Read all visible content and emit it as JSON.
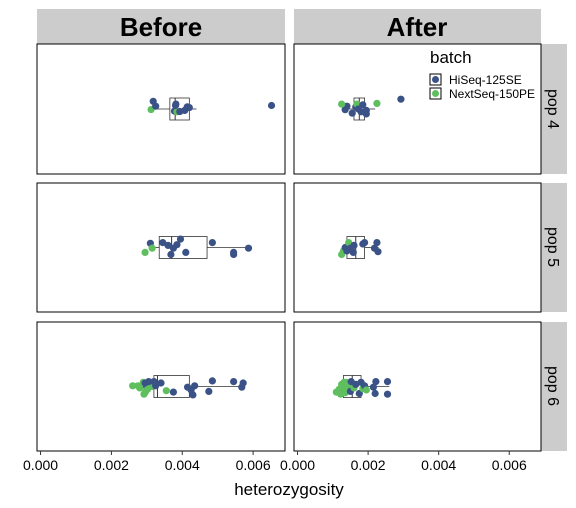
{
  "chart_data": {
    "type": "scatter",
    "subtype": "faceted jittered points with boxplots",
    "xlabel": "heterozygosity",
    "xlim": [
      -0.0001,
      0.0069
    ],
    "x_ticks": [
      "0.000",
      "0.002",
      "0.004",
      "0.006"
    ],
    "x_tick_values": [
      0.0,
      0.002,
      0.004,
      0.006
    ],
    "facet_columns": [
      "Before",
      "After"
    ],
    "facet_rows": [
      "pop 4",
      "pop 5",
      "pop 6"
    ],
    "legend": {
      "title": "batch",
      "position": "top-right",
      "entries": [
        {
          "label": "HiSeq-125SE",
          "color": "#3b5287"
        },
        {
          "label": "NextSeq-150PE",
          "color": "#5fbf5f"
        }
      ]
    },
    "panels": [
      {
        "column": "Before",
        "row": "pop 4",
        "box": {
          "min": 0.0032,
          "q1": 0.00365,
          "median": 0.0038,
          "q3": 0.0042,
          "max": 0.0044
        },
        "points": [
          {
            "x": 0.00312,
            "y": 0.04,
            "batch": "NextSeq-150PE"
          },
          {
            "x": 0.00325,
            "y": -0.2,
            "batch": "HiSeq-125SE"
          },
          {
            "x": 0.00318,
            "y": -0.55,
            "batch": "HiSeq-125SE"
          },
          {
            "x": 0.00378,
            "y": 0.15,
            "batch": "HiSeq-125SE"
          },
          {
            "x": 0.00385,
            "y": 0.2,
            "batch": "NextSeq-150PE"
          },
          {
            "x": 0.00393,
            "y": 0.18,
            "batch": "HiSeq-125SE"
          },
          {
            "x": 0.00407,
            "y": 0.1,
            "batch": "HiSeq-125SE"
          },
          {
            "x": 0.00414,
            "y": -0.15,
            "batch": "HiSeq-125SE"
          },
          {
            "x": 0.00381,
            "y": -0.25,
            "batch": "HiSeq-125SE"
          },
          {
            "x": 0.00382,
            "y": -0.35,
            "batch": "HiSeq-125SE"
          },
          {
            "x": 0.0042,
            "y": -0.1,
            "batch": "HiSeq-125SE"
          },
          {
            "x": 0.00652,
            "y": -0.25,
            "batch": "HiSeq-125SE"
          }
        ]
      },
      {
        "column": "After",
        "row": "pop 4",
        "box": {
          "min": 0.0013,
          "q1": 0.0016,
          "median": 0.00175,
          "q3": 0.0019,
          "max": 0.0022
        },
        "points": [
          {
            "x": 0.00135,
            "y": 0.05,
            "batch": "HiSeq-125SE"
          },
          {
            "x": 0.00155,
            "y": 0.3,
            "batch": "HiSeq-125SE"
          },
          {
            "x": 0.00165,
            "y": -0.15,
            "batch": "HiSeq-125SE"
          },
          {
            "x": 0.00168,
            "y": -0.35,
            "batch": "NextSeq-150PE"
          },
          {
            "x": 0.00172,
            "y": 0.0,
            "batch": "HiSeq-125SE"
          },
          {
            "x": 0.0018,
            "y": 0.2,
            "batch": "HiSeq-125SE"
          },
          {
            "x": 0.00185,
            "y": -0.3,
            "batch": "HiSeq-125SE"
          },
          {
            "x": 0.00195,
            "y": 0.1,
            "batch": "HiSeq-125SE"
          },
          {
            "x": 0.0014,
            "y": -0.2,
            "batch": "HiSeq-125SE"
          },
          {
            "x": 0.00125,
            "y": -0.35,
            "batch": "NextSeq-150PE"
          },
          {
            "x": 0.00225,
            "y": -0.4,
            "batch": "NextSeq-150PE"
          },
          {
            "x": 0.00195,
            "y": 0.35,
            "batch": "HiSeq-125SE"
          },
          {
            "x": 0.00293,
            "y": -0.7,
            "batch": "HiSeq-125SE"
          }
        ]
      },
      {
        "column": "Before",
        "row": "pop 5",
        "box": {
          "min": 0.0031,
          "q1": 0.00335,
          "median": 0.0037,
          "q3": 0.0047,
          "max": 0.0059
        },
        "points": [
          {
            "x": 0.00295,
            "y": 0.35,
            "batch": "NextSeq-150PE"
          },
          {
            "x": 0.0031,
            "y": -0.3,
            "batch": "HiSeq-125SE"
          },
          {
            "x": 0.00315,
            "y": 0.05,
            "batch": "NextSeq-150PE"
          },
          {
            "x": 0.00345,
            "y": -0.35,
            "batch": "HiSeq-125SE"
          },
          {
            "x": 0.0036,
            "y": -0.15,
            "batch": "HiSeq-125SE"
          },
          {
            "x": 0.00368,
            "y": 0.5,
            "batch": "HiSeq-125SE"
          },
          {
            "x": 0.00375,
            "y": 0.05,
            "batch": "HiSeq-125SE"
          },
          {
            "x": 0.00385,
            "y": -0.2,
            "batch": "HiSeq-125SE"
          },
          {
            "x": 0.00395,
            "y": -0.6,
            "batch": "HiSeq-125SE"
          },
          {
            "x": 0.0041,
            "y": 0.35,
            "batch": "HiSeq-125SE"
          },
          {
            "x": 0.00485,
            "y": -0.35,
            "batch": "HiSeq-125SE"
          },
          {
            "x": 0.00545,
            "y": 0.5,
            "batch": "HiSeq-125SE"
          },
          {
            "x": 0.00545,
            "y": 0.35,
            "batch": "HiSeq-125SE"
          },
          {
            "x": 0.00587,
            "y": 0.05,
            "batch": "HiSeq-125SE"
          }
        ]
      },
      {
        "column": "After",
        "row": "pop 5",
        "box": {
          "min": 0.0013,
          "q1": 0.0014,
          "median": 0.00165,
          "q3": 0.0019,
          "max": 0.0023
        },
        "points": [
          {
            "x": 0.00125,
            "y": 0.5,
            "batch": "NextSeq-150PE"
          },
          {
            "x": 0.0013,
            "y": 0.25,
            "batch": "NextSeq-150PE"
          },
          {
            "x": 0.00135,
            "y": 0.0,
            "batch": "HiSeq-125SE"
          },
          {
            "x": 0.0014,
            "y": 0.25,
            "batch": "HiSeq-125SE"
          },
          {
            "x": 0.00145,
            "y": -0.35,
            "batch": "NextSeq-150PE"
          },
          {
            "x": 0.0015,
            "y": 0.05,
            "batch": "HiSeq-125SE"
          },
          {
            "x": 0.00158,
            "y": 0.35,
            "batch": "HiSeq-125SE"
          },
          {
            "x": 0.0016,
            "y": -0.15,
            "batch": "HiSeq-125SE"
          },
          {
            "x": 0.00185,
            "y": -0.25,
            "batch": "HiSeq-125SE"
          },
          {
            "x": 0.0019,
            "y": -0.35,
            "batch": "HiSeq-125SE"
          },
          {
            "x": 0.00218,
            "y": 0.05,
            "batch": "HiSeq-125SE"
          },
          {
            "x": 0.00225,
            "y": -0.35,
            "batch": "HiSeq-125SE"
          },
          {
            "x": 0.00228,
            "y": 0.3,
            "batch": "HiSeq-125SE"
          }
        ]
      },
      {
        "column": "Before",
        "row": "pop 6",
        "box": {
          "min": 0.0028,
          "q1": 0.0032,
          "median": 0.0033,
          "q3": 0.0042,
          "max": 0.0057
        },
        "points": [
          {
            "x": 0.0026,
            "y": -0.05,
            "batch": "NextSeq-150PE"
          },
          {
            "x": 0.00275,
            "y": -0.05,
            "batch": "NextSeq-150PE"
          },
          {
            "x": 0.0028,
            "y": 0.1,
            "batch": "NextSeq-150PE"
          },
          {
            "x": 0.0029,
            "y": -0.3,
            "batch": "NextSeq-150PE"
          },
          {
            "x": 0.003,
            "y": 0.05,
            "batch": "HiSeq-125SE"
          },
          {
            "x": 0.00292,
            "y": 0.55,
            "batch": "NextSeq-150PE"
          },
          {
            "x": 0.00296,
            "y": 0.4,
            "batch": "NextSeq-150PE"
          },
          {
            "x": 0.00302,
            "y": 0.2,
            "batch": "NextSeq-150PE"
          },
          {
            "x": 0.0031,
            "y": -0.1,
            "batch": "NextSeq-150PE"
          },
          {
            "x": 0.00315,
            "y": 0.0,
            "batch": "NextSeq-150PE"
          },
          {
            "x": 0.0032,
            "y": -0.35,
            "batch": "HiSeq-125SE"
          },
          {
            "x": 0.00325,
            "y": -0.05,
            "batch": "HiSeq-125SE"
          },
          {
            "x": 0.00295,
            "y": -0.25,
            "batch": "HiSeq-125SE"
          },
          {
            "x": 0.00305,
            "y": -0.35,
            "batch": "HiSeq-125SE"
          },
          {
            "x": 0.0034,
            "y": -0.25,
            "batch": "HiSeq-125SE"
          },
          {
            "x": 0.00355,
            "y": 0.3,
            "batch": "NextSeq-150PE"
          },
          {
            "x": 0.00375,
            "y": 0.4,
            "batch": "HiSeq-125SE"
          },
          {
            "x": 0.00415,
            "y": 0.05,
            "batch": "HiSeq-125SE"
          },
          {
            "x": 0.00425,
            "y": 0.25,
            "batch": "HiSeq-125SE"
          },
          {
            "x": 0.00435,
            "y": -0.05,
            "batch": "HiSeq-125SE"
          },
          {
            "x": 0.0043,
            "y": 0.6,
            "batch": "HiSeq-125SE"
          },
          {
            "x": 0.00475,
            "y": 0.35,
            "batch": "HiSeq-125SE"
          },
          {
            "x": 0.00485,
            "y": -0.4,
            "batch": "HiSeq-125SE"
          },
          {
            "x": 0.00545,
            "y": -0.35,
            "batch": "HiSeq-125SE"
          },
          {
            "x": 0.00568,
            "y": 0.05,
            "batch": "HiSeq-125SE"
          },
          {
            "x": 0.00572,
            "y": -0.25,
            "batch": "HiSeq-125SE"
          }
        ]
      },
      {
        "column": "After",
        "row": "pop 6",
        "box": {
          "min": 0.0012,
          "q1": 0.0013,
          "median": 0.00155,
          "q3": 0.0018,
          "max": 0.0026
        },
        "points": [
          {
            "x": 0.0011,
            "y": 0.4,
            "batch": "NextSeq-150PE"
          },
          {
            "x": 0.00118,
            "y": 0.2,
            "batch": "NextSeq-150PE"
          },
          {
            "x": 0.00122,
            "y": 0.55,
            "batch": "NextSeq-150PE"
          },
          {
            "x": 0.00125,
            "y": -0.15,
            "batch": "NextSeq-150PE"
          },
          {
            "x": 0.0013,
            "y": 0.1,
            "batch": "NextSeq-150PE"
          },
          {
            "x": 0.00132,
            "y": -0.3,
            "batch": "NextSeq-150PE"
          },
          {
            "x": 0.00135,
            "y": 0.45,
            "batch": "NextSeq-150PE"
          },
          {
            "x": 0.0014,
            "y": 0.25,
            "batch": "NextSeq-150PE"
          },
          {
            "x": 0.00145,
            "y": -0.05,
            "batch": "NextSeq-150PE"
          },
          {
            "x": 0.00138,
            "y": -0.3,
            "batch": "NextSeq-150PE"
          },
          {
            "x": 0.0015,
            "y": 0.35,
            "batch": "HiSeq-125SE"
          },
          {
            "x": 0.00152,
            "y": -0.35,
            "batch": "HiSeq-125SE"
          },
          {
            "x": 0.0016,
            "y": 0.1,
            "batch": "NextSeq-150PE"
          },
          {
            "x": 0.00165,
            "y": -0.15,
            "batch": "HiSeq-125SE"
          },
          {
            "x": 0.00175,
            "y": 0.5,
            "batch": "HiSeq-125SE"
          },
          {
            "x": 0.0018,
            "y": -0.3,
            "batch": "HiSeq-125SE"
          },
          {
            "x": 0.00185,
            "y": 0.15,
            "batch": "NextSeq-150PE"
          },
          {
            "x": 0.0019,
            "y": -0.05,
            "batch": "HiSeq-125SE"
          },
          {
            "x": 0.00195,
            "y": 0.25,
            "batch": "NextSeq-150PE"
          },
          {
            "x": 0.00215,
            "y": 0.05,
            "batch": "HiSeq-125SE"
          },
          {
            "x": 0.0022,
            "y": 0.5,
            "batch": "HiSeq-125SE"
          },
          {
            "x": 0.00222,
            "y": -0.35,
            "batch": "HiSeq-125SE"
          },
          {
            "x": 0.00255,
            "y": 0.55,
            "batch": "HiSeq-125SE"
          },
          {
            "x": 0.00255,
            "y": -0.35,
            "batch": "HiSeq-125SE"
          }
        ]
      }
    ]
  }
}
